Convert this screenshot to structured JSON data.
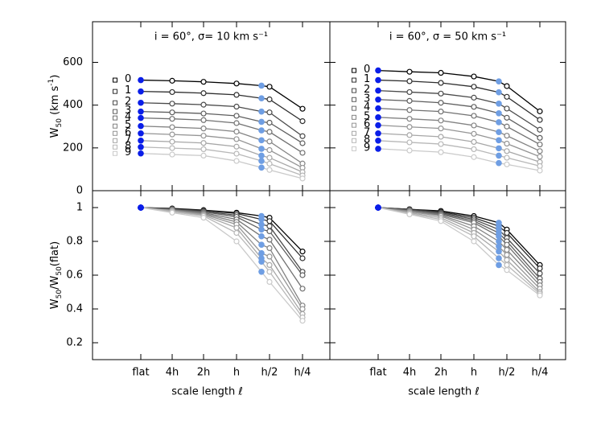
{
  "chart_data": [
    {
      "type": "line",
      "title": "i = 60°, σ= 10 km s⁻¹",
      "ylabel_parts": [
        {
          "text": "W"
        },
        {
          "text": "50",
          "shift": "sub"
        },
        {
          "text": " (km s"
        },
        {
          "text": "-1",
          "shift": "super"
        },
        {
          "text": ")"
        }
      ],
      "ylim": [
        0,
        790
      ],
      "yticks": [
        0,
        200,
        400,
        600
      ],
      "highlight_colors": [
        "#0a1ee8",
        null,
        null,
        null,
        "#6f9ee3",
        null,
        null
      ],
      "series": [
        {
          "name": "0",
          "color": "#000000",
          "values": [
            517,
            514,
            509,
            501,
            491,
            486,
            383
          ]
        },
        {
          "name": "1",
          "color": "#2e2e2e",
          "values": [
            464,
            461,
            456,
            448,
            432,
            427,
            325
          ]
        },
        {
          "name": "2",
          "color": "#4a4a4a",
          "values": [
            411,
            407,
            402,
            393,
            370,
            366,
            255
          ]
        },
        {
          "name": "3",
          "color": "#5e5e5e",
          "values": [
            370,
            366,
            361,
            350,
            322,
            318,
            222
          ]
        },
        {
          "name": "4",
          "color": "#717171",
          "values": [
            340,
            336,
            330,
            316,
            282,
            275,
            177
          ]
        },
        {
          "name": "5",
          "color": "#838383",
          "values": [
            302,
            297,
            291,
            276,
            236,
            230,
            127
          ]
        },
        {
          "name": "6",
          "color": "#959595",
          "values": [
            268,
            263,
            257,
            241,
            196,
            190,
            107
          ]
        },
        {
          "name": "7",
          "color": "#a7a7a7",
          "values": [
            234,
            229,
            223,
            206,
            164,
            154,
            87
          ]
        },
        {
          "name": "8",
          "color": "#b8b8b8",
          "values": [
            204,
            199,
            194,
            173,
            139,
            126,
            71
          ]
        },
        {
          "name": "9",
          "color": "#cacaca",
          "values": [
            174,
            169,
            164,
            139,
            108,
            97,
            57
          ]
        }
      ]
    },
    {
      "type": "line",
      "title": "i = 60°, σ = 50 km s⁻¹",
      "ylim": [
        0,
        790
      ],
      "yticks": [
        0,
        200,
        400,
        600
      ],
      "ytick_labels": false,
      "highlight_colors": [
        "#0a1ee8",
        null,
        null,
        null,
        "#6f9ee3",
        null,
        null
      ],
      "series": [
        {
          "name": "0",
          "color": "#000000",
          "values": [
            562,
            556,
            551,
            534,
            511,
            489,
            371
          ]
        },
        {
          "name": "1",
          "color": "#2e2e2e",
          "values": [
            517,
            512,
            504,
            486,
            460,
            439,
            331
          ]
        },
        {
          "name": "2",
          "color": "#4a4a4a",
          "values": [
            468,
            461,
            454,
            435,
            407,
            384,
            285
          ]
        },
        {
          "name": "3",
          "color": "#5e5e5e",
          "values": [
            426,
            420,
            411,
            392,
            362,
            341,
            247
          ]
        },
        {
          "name": "4",
          "color": "#717171",
          "values": [
            385,
            377,
            370,
            350,
            320,
            300,
            216
          ]
        },
        {
          "name": "5",
          "color": "#838383",
          "values": [
            343,
            336,
            328,
            305,
            274,
            257,
            185
          ]
        },
        {
          "name": "6",
          "color": "#959595",
          "values": [
            306,
            298,
            291,
            266,
            236,
            220,
            159
          ]
        },
        {
          "name": "7",
          "color": "#a7a7a7",
          "values": [
            268,
            260,
            252,
            228,
            198,
            185,
            134
          ]
        },
        {
          "name": "8",
          "color": "#b8b8b8",
          "values": [
            234,
            226,
            218,
            194,
            164,
            154,
            115
          ]
        },
        {
          "name": "9",
          "color": "#cacaca",
          "values": [
            196,
            188,
            180,
            157,
            129,
            123,
            94
          ]
        }
      ]
    },
    {
      "type": "line",
      "xlabel": "scale length ℓ",
      "ylabel_parts": [
        {
          "text": "W"
        },
        {
          "text": "50",
          "shift": "sub"
        },
        {
          "text": "/W"
        },
        {
          "text": "50",
          "shift": "sub"
        },
        {
          "text": "(flat)"
        }
      ],
      "categories": [
        "flat",
        "4h",
        "2h",
        "h",
        null,
        "h/2",
        "h/4"
      ],
      "ylim": [
        0.1,
        1.1
      ],
      "yticks": [
        0.2,
        0.4,
        0.6,
        0.8,
        1
      ],
      "highlight_colors": [
        "#0a1ee8",
        null,
        null,
        null,
        "#6f9ee3",
        null,
        null
      ],
      "series": [
        {
          "color": "#000000",
          "values": [
            1,
            0.995,
            0.985,
            0.97,
            0.95,
            0.94,
            0.74
          ]
        },
        {
          "color": "#2e2e2e",
          "values": [
            1,
            0.993,
            0.982,
            0.965,
            0.93,
            0.92,
            0.7
          ]
        },
        {
          "color": "#4a4a4a",
          "values": [
            1,
            0.99,
            0.978,
            0.955,
            0.9,
            0.89,
            0.62
          ]
        },
        {
          "color": "#5e5e5e",
          "values": [
            1,
            0.99,
            0.975,
            0.945,
            0.87,
            0.86,
            0.6
          ]
        },
        {
          "color": "#717171",
          "values": [
            1,
            0.988,
            0.97,
            0.93,
            0.83,
            0.81,
            0.52
          ]
        },
        {
          "color": "#838383",
          "values": [
            1,
            0.985,
            0.965,
            0.915,
            0.78,
            0.76,
            0.42
          ]
        },
        {
          "color": "#959595",
          "values": [
            1,
            0.982,
            0.96,
            0.9,
            0.73,
            0.71,
            0.4
          ]
        },
        {
          "color": "#a7a7a7",
          "values": [
            1,
            0.98,
            0.955,
            0.88,
            0.7,
            0.66,
            0.37
          ]
        },
        {
          "color": "#b8b8b8",
          "values": [
            1,
            0.975,
            0.95,
            0.85,
            0.68,
            0.62,
            0.35
          ]
        },
        {
          "color": "#cacaca",
          "values": [
            1,
            0.97,
            0.94,
            0.8,
            0.62,
            0.56,
            0.33
          ]
        }
      ]
    },
    {
      "type": "line",
      "xlabel": "scale length ℓ",
      "categories": [
        "flat",
        "4h",
        "2h",
        "h",
        null,
        "h/2",
        "h/4"
      ],
      "ylim": [
        0.1,
        1.1
      ],
      "yticks": [
        0.2,
        0.4,
        0.6,
        0.8,
        1
      ],
      "ytick_labels": false,
      "highlight_colors": [
        "#0a1ee8",
        null,
        null,
        null,
        "#6f9ee3",
        null,
        null
      ],
      "series": [
        {
          "color": "#000000",
          "values": [
            1,
            0.99,
            0.98,
            0.95,
            0.91,
            0.87,
            0.66
          ]
        },
        {
          "color": "#2e2e2e",
          "values": [
            1,
            0.99,
            0.975,
            0.94,
            0.89,
            0.85,
            0.64
          ]
        },
        {
          "color": "#4a4a4a",
          "values": [
            1,
            0.985,
            0.97,
            0.93,
            0.87,
            0.82,
            0.61
          ]
        },
        {
          "color": "#5e5e5e",
          "values": [
            1,
            0.985,
            0.965,
            0.92,
            0.85,
            0.8,
            0.58
          ]
        },
        {
          "color": "#717171",
          "values": [
            1,
            0.98,
            0.96,
            0.91,
            0.83,
            0.78,
            0.56
          ]
        },
        {
          "color": "#838383",
          "values": [
            1,
            0.98,
            0.955,
            0.89,
            0.8,
            0.75,
            0.54
          ]
        },
        {
          "color": "#959595",
          "values": [
            1,
            0.975,
            0.95,
            0.87,
            0.77,
            0.72,
            0.52
          ]
        },
        {
          "color": "#a7a7a7",
          "values": [
            1,
            0.97,
            0.94,
            0.85,
            0.74,
            0.69,
            0.5
          ]
        },
        {
          "color": "#b8b8b8",
          "values": [
            1,
            0.965,
            0.93,
            0.83,
            0.7,
            0.66,
            0.49
          ]
        },
        {
          "color": "#cacaca",
          "values": [
            1,
            0.96,
            0.92,
            0.8,
            0.66,
            0.63,
            0.48
          ]
        }
      ]
    }
  ]
}
